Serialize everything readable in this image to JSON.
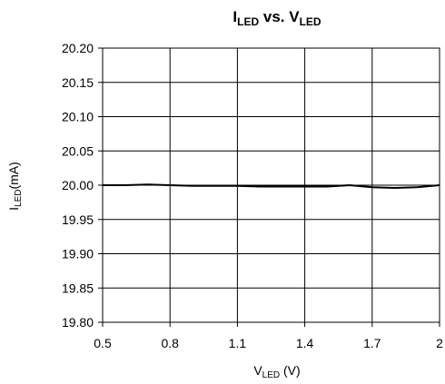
{
  "chart_data": {
    "type": "line",
    "title": {
      "main1": "I",
      "sub1": "LED",
      "mid": " vs. V",
      "sub2": "LED"
    },
    "xlabel": {
      "main": "V",
      "sub": "LED",
      "rest": " (V)"
    },
    "ylabel": {
      "main": "I",
      "sub": "LED",
      "rest": "(mA)"
    },
    "xlim": [
      0.5,
      2.0
    ],
    "ylim": [
      19.8,
      20.2
    ],
    "x_ticks": [
      0.5,
      0.8,
      1.1,
      1.4,
      1.7,
      2.0
    ],
    "x_tick_labels": [
      "0.5",
      "0.8",
      "1.1",
      "1.4",
      "1.7",
      "2"
    ],
    "y_ticks": [
      19.8,
      19.85,
      19.9,
      19.95,
      20.0,
      20.05,
      20.1,
      20.15,
      20.2
    ],
    "y_tick_labels": [
      "19.80",
      "19.85",
      "19.90",
      "19.95",
      "20.00",
      "20.05",
      "20.10",
      "20.15",
      "20.20"
    ],
    "grid": true,
    "series": [
      {
        "color": "#000000",
        "x": [
          0.5,
          0.6,
          0.7,
          0.8,
          0.9,
          1.0,
          1.1,
          1.2,
          1.3,
          1.4,
          1.5,
          1.6,
          1.7,
          1.8,
          1.9,
          2.0
        ],
        "y": [
          20.0,
          20.0,
          20.001,
          20.0,
          19.999,
          19.999,
          19.999,
          19.998,
          19.998,
          19.998,
          19.998,
          20.0,
          19.997,
          19.996,
          19.997,
          20.0
        ]
      }
    ]
  }
}
